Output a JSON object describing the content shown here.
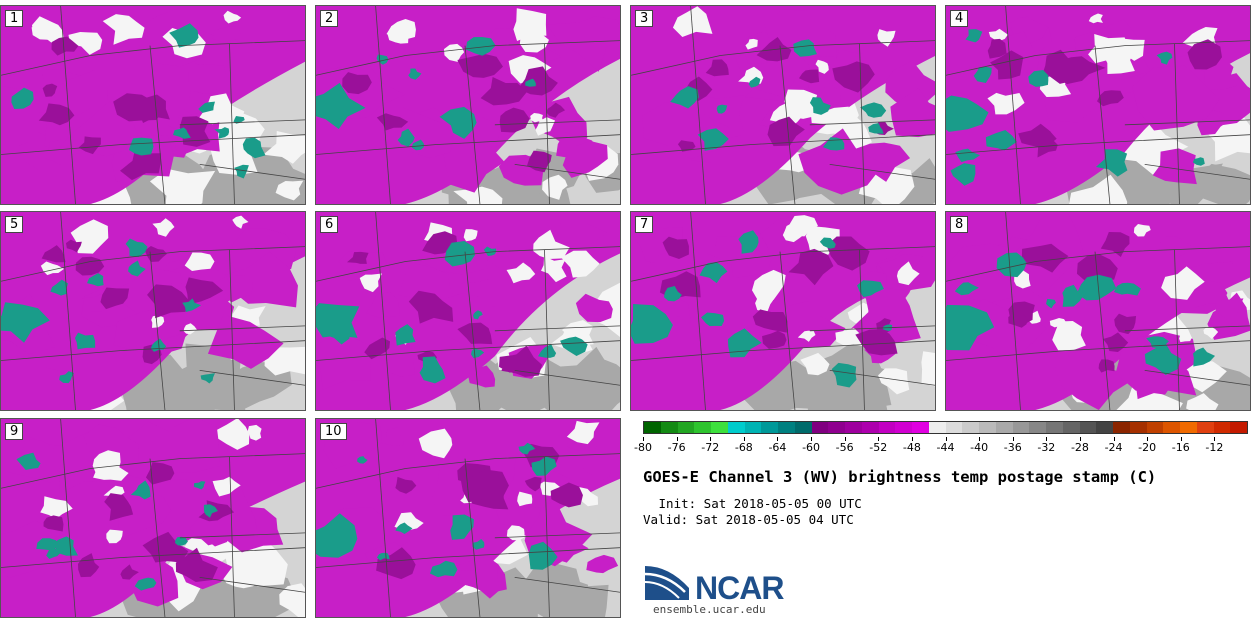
{
  "panels": [
    {
      "label": "1"
    },
    {
      "label": "2"
    },
    {
      "label": "3"
    },
    {
      "label": "4"
    },
    {
      "label": "5"
    },
    {
      "label": "6"
    },
    {
      "label": "7"
    },
    {
      "label": "8"
    },
    {
      "label": "9"
    },
    {
      "label": "10"
    }
  ],
  "colorbar": {
    "colors": [
      "#006400",
      "#138a13",
      "#22a622",
      "#2ec42e",
      "#3de03d",
      "#00cccc",
      "#00b3b3",
      "#009999",
      "#008080",
      "#006b6b",
      "#800080",
      "#8f008f",
      "#9e009e",
      "#ad00ad",
      "#c200c2",
      "#d100d1",
      "#e000e0",
      "#ededed",
      "#dcdcdc",
      "#cbcbcb",
      "#bababa",
      "#a9a9a9",
      "#989898",
      "#878787",
      "#767676",
      "#656565",
      "#545454",
      "#434343",
      "#8b2500",
      "#a53000",
      "#c04000",
      "#dd5500",
      "#f06a00",
      "#e04010",
      "#d02a00",
      "#c41a00"
    ],
    "ticks": [
      "-80",
      "-76",
      "-72",
      "-68",
      "-64",
      "-60",
      "-56",
      "-52",
      "-48",
      "-44",
      "-40",
      "-36",
      "-32",
      "-28",
      "-24",
      "-20",
      "-16",
      "-12"
    ]
  },
  "title": "GOES-E Channel 3 (WV) brightness temp postage stamp (C)",
  "init_line": " Init: Sat 2018-05-05 00 UTC",
  "valid_line": "Valid: Sat 2018-05-05 04 UTC",
  "logo": {
    "text": "NCAR",
    "url": "ensemble.ucar.edu",
    "color": "#1e4f8a"
  },
  "map_colors": {
    "background": "#d4d4d4",
    "dark_gray": "#a8a8a8",
    "white": "#f5f5f5",
    "magenta": "#c71fc7",
    "dark_magenta": "#9a109a",
    "teal": "#1a9c8a",
    "border": "#444444"
  }
}
